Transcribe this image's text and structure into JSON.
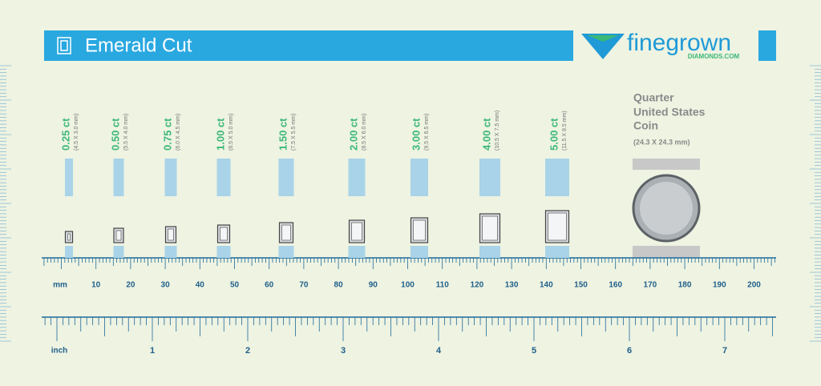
{
  "header": {
    "title": "Emerald Cut",
    "logo": "finegrown",
    "logo_sub": "DIAMONDS.COM"
  },
  "stones": [
    {
      "carat": "0.25 ct",
      "dims": "(4.5 X 3.0 mm)"
    },
    {
      "carat": "0.50 ct",
      "dims": "(5.5 X 4.0 mm)"
    },
    {
      "carat": "0.75 ct",
      "dims": "(6.0 X 4.5 mm)"
    },
    {
      "carat": "1.00 ct",
      "dims": "(6.5 X 5.0 mm)"
    },
    {
      "carat": "1.50 ct",
      "dims": "(7.5 X 5.5 mm)"
    },
    {
      "carat": "2.00 ct",
      "dims": "(8.5 X 6.0 mm)"
    },
    {
      "carat": "3.00 ct",
      "dims": "(9.5 X 6.5 mm)"
    },
    {
      "carat": "4.00 ct",
      "dims": "(10.5 X 7.5 mm)"
    },
    {
      "carat": "5.00 ct",
      "dims": "(11.5 X 8.5 mm)"
    }
  ],
  "quarter": {
    "lines": [
      "Quarter",
      "United States",
      "Coin"
    ],
    "dims": "(24.3 X 24.3 mm)"
  },
  "ruler_mm": {
    "unit": "mm",
    "labels": [
      "10",
      "20",
      "30",
      "40",
      "50",
      "60",
      "70",
      "80",
      "90",
      "100",
      "110",
      "120",
      "130",
      "140",
      "150",
      "160",
      "170",
      "180",
      "190",
      "200"
    ]
  },
  "ruler_inch": {
    "unit": "inch",
    "labels": [
      "1",
      "2",
      "3",
      "4",
      "5",
      "6",
      "7"
    ]
  }
}
